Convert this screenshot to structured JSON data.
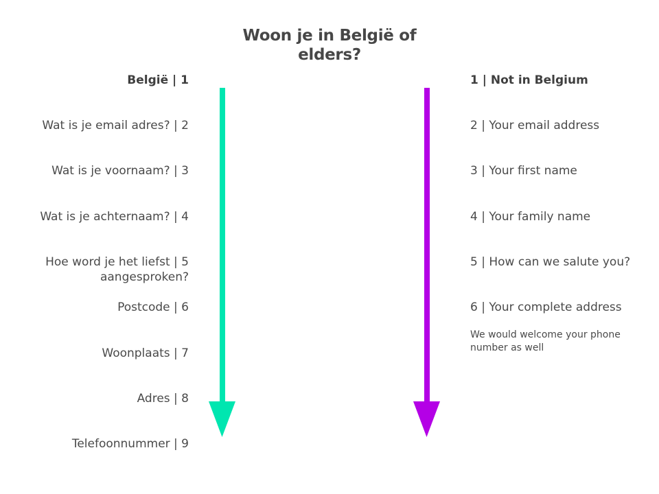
{
  "title": {
    "line1": "Woon je in België of",
    "line2": "elders?"
  },
  "left": {
    "header": "België | 1",
    "items": [
      "Wat is je email adres? | 2",
      "Wat is je voornaam? | 3",
      "Wat is je achternaam? | 4",
      "Hoe word je het liefst | 5",
      "aangesproken?",
      "Postcode | 6",
      "Woonplaats | 7",
      "Adres | 8",
      "Telefoonnummer | 9"
    ],
    "arrow_color": "#00e6b0"
  },
  "right": {
    "header": "1 | Not in Belgium",
    "items": [
      "2 | Your email address",
      "3 | Your first name",
      "4 | Your family name",
      "5 | How can we salute you?",
      "6 | Your complete address"
    ],
    "note_line1": "We would welcome your phone",
    "note_line2": "number as well",
    "arrow_color": "#b400e6"
  }
}
